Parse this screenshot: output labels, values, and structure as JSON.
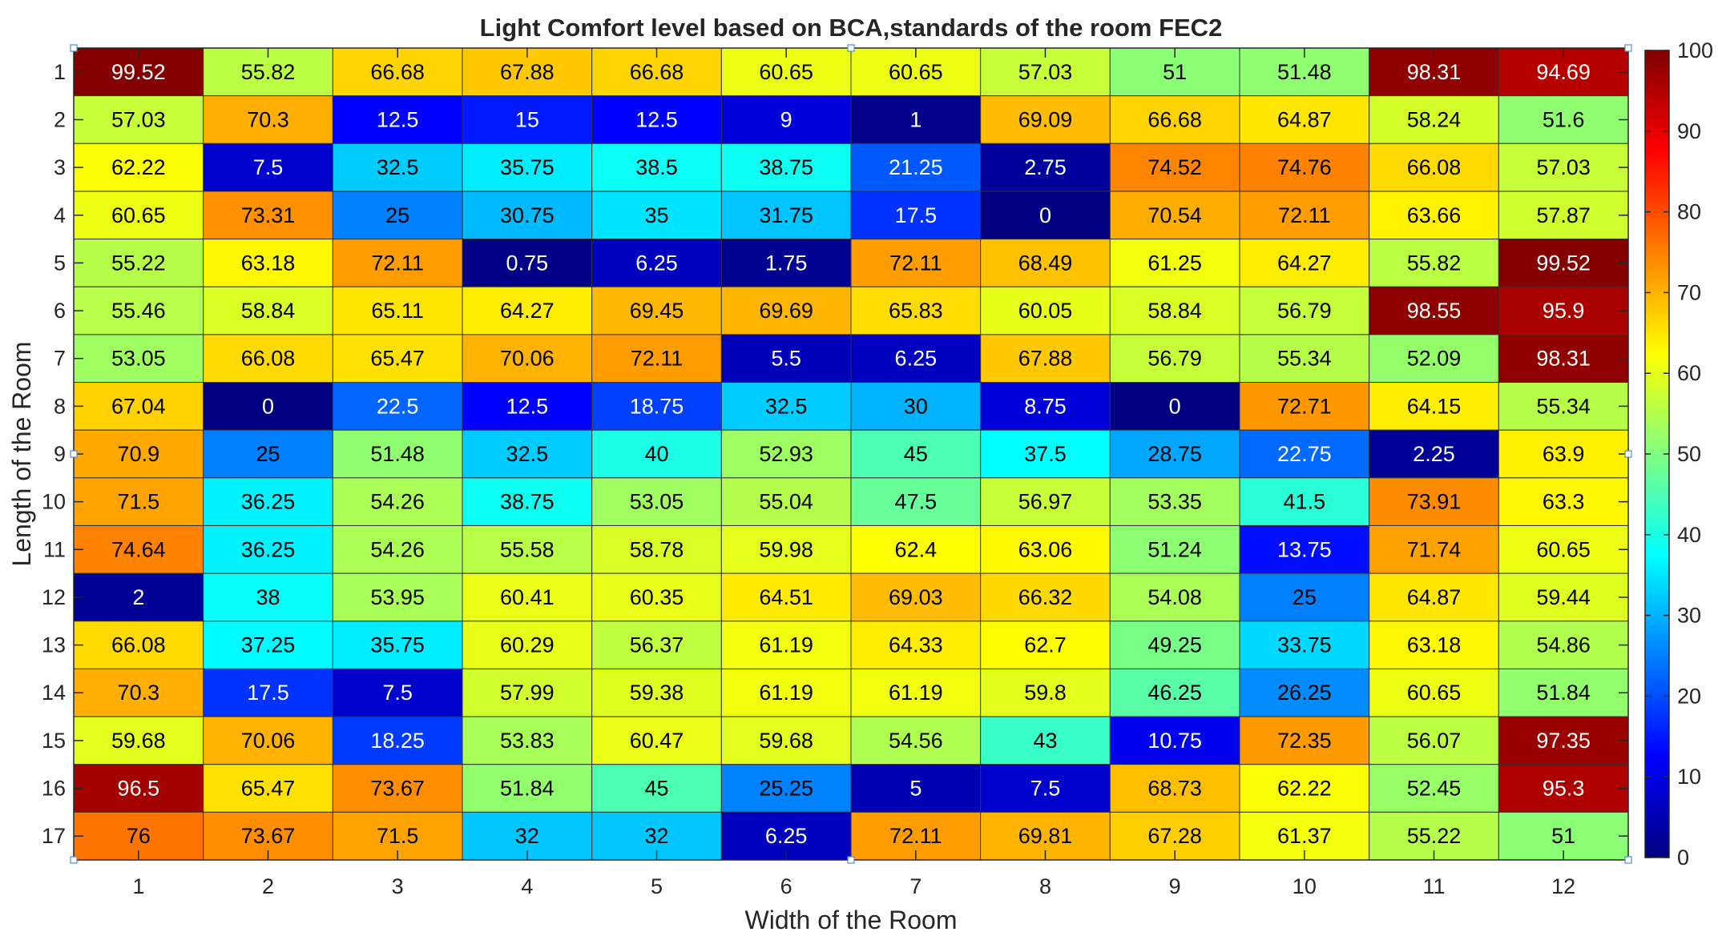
{
  "chart_data": {
    "type": "heatmap",
    "title": "Light Comfort level based on BCA,standards of the room FEC2",
    "xlabel": "Width of the Room",
    "ylabel": "Length of the Room",
    "x_categories": [
      "1",
      "2",
      "3",
      "4",
      "5",
      "6",
      "7",
      "8",
      "9",
      "10",
      "11",
      "12"
    ],
    "y_categories": [
      "1",
      "2",
      "3",
      "4",
      "5",
      "6",
      "7",
      "8",
      "9",
      "10",
      "11",
      "12",
      "13",
      "14",
      "15",
      "16",
      "17"
    ],
    "colorbar": {
      "min": 0,
      "max": 100,
      "ticks": [
        "0",
        "10",
        "20",
        "30",
        "40",
        "50",
        "60",
        "70",
        "80",
        "90",
        "100"
      ],
      "colormap": "jet"
    },
    "values": [
      [
        "99.52",
        "55.82",
        "66.68",
        "67.88",
        "66.68",
        "60.65",
        "60.65",
        "57.03",
        "51",
        "51.48",
        "98.31",
        "94.69"
      ],
      [
        "57.03",
        "70.3",
        "12.5",
        "15",
        "12.5",
        "9",
        "1",
        "69.09",
        "66.68",
        "64.87",
        "58.24",
        "51.6"
      ],
      [
        "62.22",
        "7.5",
        "32.5",
        "35.75",
        "38.5",
        "38.75",
        "21.25",
        "2.75",
        "74.52",
        "74.76",
        "66.08",
        "57.03"
      ],
      [
        "60.65",
        "73.31",
        "25",
        "30.75",
        "35",
        "31.75",
        "17.5",
        "0",
        "70.54",
        "72.11",
        "63.66",
        "57.87"
      ],
      [
        "55.22",
        "63.18",
        "72.11",
        "0.75",
        "6.25",
        "1.75",
        "72.11",
        "68.49",
        "61.25",
        "64.27",
        "55.82",
        "99.52"
      ],
      [
        "55.46",
        "58.84",
        "65.11",
        "64.27",
        "69.45",
        "69.69",
        "65.83",
        "60.05",
        "58.84",
        "56.79",
        "98.55",
        "95.9"
      ],
      [
        "53.05",
        "66.08",
        "65.47",
        "70.06",
        "72.11",
        "5.5",
        "6.25",
        "67.88",
        "56.79",
        "55.34",
        "52.09",
        "98.31"
      ],
      [
        "67.04",
        "0",
        "22.5",
        "12.5",
        "18.75",
        "32.5",
        "30",
        "8.75",
        "0",
        "72.71",
        "64.15",
        "55.34"
      ],
      [
        "70.9",
        "25",
        "51.48",
        "32.5",
        "40",
        "52.93",
        "45",
        "37.5",
        "28.75",
        "22.75",
        "2.25",
        "63.9"
      ],
      [
        "71.5",
        "36.25",
        "54.26",
        "38.75",
        "53.05",
        "55.04",
        "47.5",
        "56.97",
        "53.35",
        "41.5",
        "73.91",
        "63.3"
      ],
      [
        "74.64",
        "36.25",
        "54.26",
        "55.58",
        "58.78",
        "59.98",
        "62.4",
        "63.06",
        "51.24",
        "13.75",
        "71.74",
        "60.65"
      ],
      [
        "2",
        "38",
        "53.95",
        "60.41",
        "60.35",
        "64.51",
        "69.03",
        "66.32",
        "54.08",
        "25",
        "64.87",
        "59.44"
      ],
      [
        "66.08",
        "37.25",
        "35.75",
        "60.29",
        "56.37",
        "61.19",
        "64.33",
        "62.7",
        "49.25",
        "33.75",
        "63.18",
        "54.86"
      ],
      [
        "70.3",
        "17.5",
        "7.5",
        "57.99",
        "59.38",
        "61.19",
        "61.19",
        "59.8",
        "46.25",
        "26.25",
        "60.65",
        "51.84"
      ],
      [
        "59.68",
        "70.06",
        "18.25",
        "53.83",
        "60.47",
        "59.68",
        "54.56",
        "43",
        "10.75",
        "72.35",
        "56.07",
        "97.35"
      ],
      [
        "96.5",
        "65.47",
        "73.67",
        "51.84",
        "45",
        "25.25",
        "5",
        "7.5",
        "68.73",
        "62.22",
        "52.45",
        "95.3"
      ],
      [
        "76",
        "73.67",
        "71.5",
        "32",
        "32",
        "6.25",
        "72.11",
        "69.81",
        "67.28",
        "61.37",
        "55.22",
        "51"
      ]
    ]
  }
}
